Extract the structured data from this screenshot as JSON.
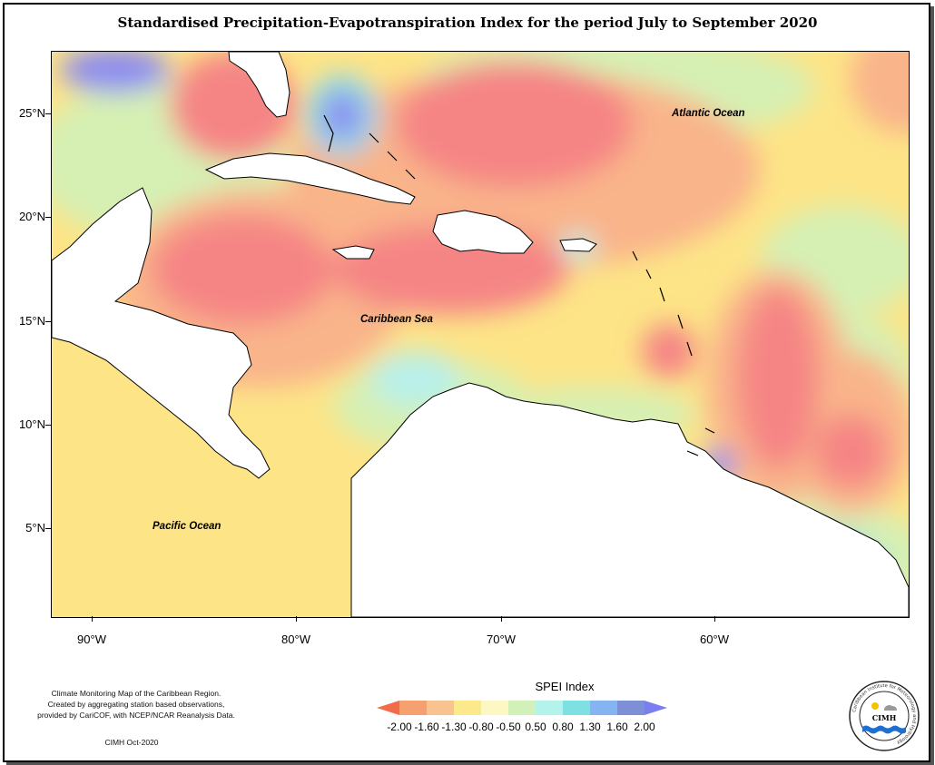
{
  "title": "Standardised Precipitation-Evapotranspiration Index for the period July to September 2020",
  "map": {
    "lon_range": [
      -92,
      -50
    ],
    "lat_range": [
      1,
      28
    ],
    "lat_labels": [
      "25°N",
      "20°N",
      "15°N",
      "10°N",
      "5°N"
    ],
    "lon_labels": [
      "90°W",
      "80°W",
      "70°W",
      "60°W"
    ],
    "ocean_labels": {
      "atlantic": "Atlantic Ocean",
      "caribbean": "Caribbean Sea",
      "pacific": "Pacific Ocean"
    }
  },
  "legend": {
    "title": "SPEI Index",
    "ticks": [
      "-2.00",
      "-1.60",
      "-1.30",
      "-0.80",
      "-0.50",
      "0.50",
      "0.80",
      "1.30",
      "1.60",
      "2.00"
    ],
    "colors": [
      "#f26b4a",
      "#f5a06e",
      "#f8c38f",
      "#fce98b",
      "#fdf7c3",
      "#d2f1b8",
      "#b4f3ec",
      "#7ee0e0",
      "#85b5f0",
      "#7d90d6",
      "#7a7ff0"
    ]
  },
  "footer": {
    "line1": "Climate Monitoring Map of the Caribbean Region.",
    "line2": "Created by aggregating station based observations,",
    "line3": "provided by CariCOF, with NCEP/NCAR Reanalysis Data.",
    "credit": "CIMH Oct-2020"
  },
  "logo": {
    "ring_text": "Caribbean Institute for Meteorology and Hydrology",
    "acronym": "CIMH"
  },
  "colors": {
    "strong_dry": "#f58585",
    "moderate_dry": "#f9b48a",
    "mild_dry": "#fde487",
    "near_normal": "#d6f0b4",
    "mild_wet": "#b8f0ea",
    "moderate_wet": "#8ed8ea",
    "strong_wet": "#8d8cf0"
  }
}
